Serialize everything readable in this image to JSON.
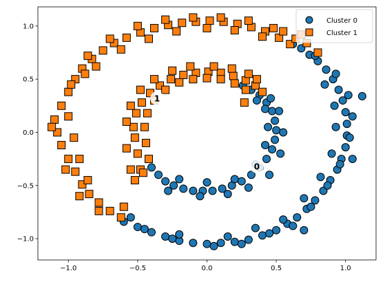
{
  "chart_data": {
    "type": "scatter",
    "title": "",
    "xlabel": "",
    "ylabel": "",
    "xlim": [
      -1.22,
      1.22
    ],
    "ylim": [
      -1.2,
      1.18
    ],
    "x_ticks": [
      -1.0,
      -0.5,
      0.0,
      0.5,
      1.0
    ],
    "x_tick_labels": [
      "−1.0",
      "−0.5",
      "0.0",
      "0.5",
      "1.0"
    ],
    "y_ticks": [
      -1.0,
      -0.5,
      0.0,
      0.5,
      1.0
    ],
    "y_tick_labels": [
      "−1.0",
      "−0.5",
      "0.0",
      "0.5",
      "1.0"
    ],
    "grid": false,
    "legend_placement": "top-right",
    "series": [
      {
        "name": "Cluster 0",
        "marker": "circle",
        "color": "#1f77b4",
        "points": [
          [
            -0.6,
            -0.84
          ],
          [
            -0.5,
            -0.89
          ],
          [
            -0.4,
            -0.94
          ],
          [
            -0.3,
            -0.98
          ],
          [
            -0.2,
            -1.02
          ],
          [
            -0.1,
            -1.04
          ],
          [
            0.0,
            -1.05
          ],
          [
            0.1,
            -1.04
          ],
          [
            0.2,
            -1.03
          ],
          [
            0.3,
            -1.01
          ],
          [
            0.4,
            -0.97
          ],
          [
            0.5,
            -0.92
          ],
          [
            0.58,
            -0.86
          ],
          [
            0.65,
            -0.8
          ],
          [
            0.72,
            -0.72
          ],
          [
            0.78,
            -0.64
          ],
          [
            0.84,
            -0.55
          ],
          [
            0.89,
            -0.45
          ],
          [
            0.94,
            -0.35
          ],
          [
            0.97,
            -0.25
          ],
          [
            1.0,
            -0.14
          ],
          [
            1.01,
            -0.03
          ],
          [
            1.01,
            0.08
          ],
          [
            1.0,
            0.19
          ],
          [
            0.98,
            0.3
          ],
          [
            0.95,
            0.4
          ],
          [
            0.91,
            0.5
          ],
          [
            0.86,
            0.59
          ],
          [
            0.8,
            0.67
          ],
          [
            0.74,
            0.73
          ],
          [
            0.68,
            0.79
          ],
          [
            0.62,
            0.83
          ],
          [
            -0.45,
            -0.91
          ],
          [
            -0.25,
            -1.0
          ],
          [
            0.05,
            -1.07
          ],
          [
            0.25,
            -1.05
          ],
          [
            0.45,
            -0.95
          ],
          [
            0.62,
            -0.88
          ],
          [
            0.75,
            -0.7
          ],
          [
            0.87,
            -0.5
          ],
          [
            0.96,
            -0.3
          ],
          [
            1.03,
            -0.05
          ],
          [
            1.05,
            0.15
          ],
          [
            1.02,
            0.35
          ],
          [
            0.93,
            0.55
          ],
          [
            0.78,
            0.72
          ],
          [
            1.12,
            0.34
          ],
          [
            1.05,
            -0.25
          ],
          [
            0.7,
            -0.92
          ],
          [
            -0.55,
            -0.8
          ],
          [
            -0.2,
            -0.96
          ],
          [
            0.15,
            -0.98
          ],
          [
            0.35,
            -0.9
          ],
          [
            0.55,
            -0.82
          ],
          [
            0.7,
            -0.62
          ],
          [
            0.82,
            -0.42
          ],
          [
            0.9,
            -0.2
          ],
          [
            0.93,
            0.05
          ],
          [
            0.92,
            0.25
          ],
          [
            0.85,
            0.45
          ],
          [
            -0.35,
            -0.4
          ],
          [
            -0.3,
            -0.46
          ],
          [
            -0.24,
            -0.5
          ],
          [
            -0.17,
            -0.53
          ],
          [
            -0.1,
            -0.55
          ],
          [
            -0.03,
            -0.55
          ],
          [
            0.04,
            -0.55
          ],
          [
            0.11,
            -0.53
          ],
          [
            0.18,
            -0.5
          ],
          [
            0.25,
            -0.46
          ],
          [
            0.32,
            -0.4
          ],
          [
            0.38,
            -0.33
          ],
          [
            0.43,
            -0.25
          ],
          [
            0.47,
            -0.16
          ],
          [
            0.49,
            -0.07
          ],
          [
            0.5,
            0.02
          ],
          [
            0.49,
            0.11
          ],
          [
            0.47,
            0.2
          ],
          [
            0.43,
            0.28
          ],
          [
            0.38,
            0.35
          ],
          [
            0.32,
            0.4
          ],
          [
            0.26,
            0.44
          ],
          [
            -0.4,
            -0.33
          ],
          [
            -0.2,
            -0.44
          ],
          [
            0.0,
            -0.47
          ],
          [
            0.2,
            -0.44
          ],
          [
            0.35,
            -0.3
          ],
          [
            0.42,
            -0.12
          ],
          [
            0.44,
            0.05
          ],
          [
            0.42,
            0.22
          ],
          [
            -0.28,
            -0.55
          ],
          [
            -0.05,
            -0.6
          ],
          [
            0.15,
            -0.58
          ],
          [
            0.3,
            -0.52
          ],
          [
            0.45,
            -0.4
          ],
          [
            0.53,
            -0.2
          ],
          [
            0.55,
            0.0
          ],
          [
            0.52,
            0.2
          ],
          [
            0.46,
            0.32
          ],
          [
            0.36,
            0.3
          ]
        ]
      },
      {
        "name": "Cluster 1",
        "marker": "square",
        "color": "#ff7f0e",
        "points": [
          [
            -1.1,
            0.12
          ],
          [
            -1.08,
            0.0
          ],
          [
            -1.05,
            -0.12
          ],
          [
            -1.0,
            -0.25
          ],
          [
            -0.95,
            -0.37
          ],
          [
            -0.9,
            -0.49
          ],
          [
            -0.85,
            -0.58
          ],
          [
            -0.78,
            -0.66
          ],
          [
            -0.7,
            -0.74
          ],
          [
            -0.62,
            -0.8
          ],
          [
            -1.05,
            0.25
          ],
          [
            -1.0,
            0.38
          ],
          [
            -0.95,
            0.5
          ],
          [
            -0.9,
            0.6
          ],
          [
            -0.83,
            0.69
          ],
          [
            -0.75,
            0.77
          ],
          [
            -0.67,
            0.84
          ],
          [
            -0.58,
            0.89
          ],
          [
            -0.48,
            0.94
          ],
          [
            -0.38,
            0.98
          ],
          [
            -0.28,
            1.01
          ],
          [
            -0.18,
            1.03
          ],
          [
            -0.08,
            1.04
          ],
          [
            0.02,
            1.05
          ],
          [
            0.12,
            1.04
          ],
          [
            0.22,
            1.02
          ],
          [
            0.32,
            0.99
          ],
          [
            0.42,
            0.95
          ],
          [
            0.52,
            0.89
          ],
          [
            0.6,
            0.83
          ],
          [
            -1.12,
            0.05
          ],
          [
            -1.02,
            -0.35
          ],
          [
            -0.92,
            -0.6
          ],
          [
            -0.78,
            -0.74
          ],
          [
            -0.98,
            0.45
          ],
          [
            -0.86,
            0.72
          ],
          [
            -0.7,
            0.88
          ],
          [
            -0.5,
            1.0
          ],
          [
            -0.3,
            1.06
          ],
          [
            -0.1,
            1.08
          ],
          [
            0.1,
            1.08
          ],
          [
            0.3,
            1.05
          ],
          [
            0.48,
            0.98
          ],
          [
            0.64,
            0.88
          ],
          [
            0.72,
            0.84
          ],
          [
            -1.0,
            0.15
          ],
          [
            -0.96,
            -0.05
          ],
          [
            -0.92,
            -0.25
          ],
          [
            -0.86,
            -0.45
          ],
          [
            -0.88,
            0.55
          ],
          [
            -0.8,
            0.62
          ],
          [
            -0.62,
            0.78
          ],
          [
            -0.42,
            0.88
          ],
          [
            -0.22,
            0.95
          ],
          [
            0.0,
            0.98
          ],
          [
            0.2,
            0.96
          ],
          [
            0.4,
            0.9
          ],
          [
            0.55,
            0.95
          ],
          [
            0.68,
            0.92
          ],
          [
            0.8,
            0.75
          ],
          [
            -0.6,
            -0.7
          ],
          [
            -0.52,
            -0.45
          ],
          [
            -0.48,
            -0.35
          ],
          [
            -0.5,
            -0.2
          ],
          [
            -0.52,
            -0.05
          ],
          [
            -0.53,
            0.05
          ],
          [
            -0.51,
            0.18
          ],
          [
            -0.47,
            0.28
          ],
          [
            -0.41,
            0.37
          ],
          [
            -0.34,
            0.44
          ],
          [
            -0.26,
            0.5
          ],
          [
            -0.17,
            0.54
          ],
          [
            -0.08,
            0.56
          ],
          [
            0.01,
            0.57
          ],
          [
            0.1,
            0.56
          ],
          [
            0.19,
            0.53
          ],
          [
            0.28,
            0.49
          ],
          [
            0.35,
            0.44
          ],
          [
            -0.42,
            -0.25
          ],
          [
            -0.44,
            -0.1
          ],
          [
            -0.45,
            0.05
          ],
          [
            -0.43,
            0.18
          ],
          [
            -0.38,
            0.3
          ],
          [
            -0.3,
            0.4
          ],
          [
            -0.2,
            0.47
          ],
          [
            -0.1,
            0.5
          ],
          [
            0.0,
            0.51
          ],
          [
            0.1,
            0.5
          ],
          [
            0.2,
            0.46
          ],
          [
            0.28,
            0.4
          ],
          [
            -0.58,
            -0.15
          ],
          [
            -0.58,
            0.1
          ],
          [
            -0.55,
            0.25
          ],
          [
            -0.48,
            0.4
          ],
          [
            -0.38,
            0.5
          ],
          [
            -0.25,
            0.58
          ],
          [
            -0.12,
            0.62
          ],
          [
            0.05,
            0.62
          ],
          [
            0.18,
            0.6
          ],
          [
            0.3,
            0.55
          ],
          [
            -0.55,
            -0.35
          ],
          [
            -0.46,
            -0.38
          ],
          [
            0.4,
            0.38
          ],
          [
            0.36,
            0.5
          ],
          [
            0.27,
            0.28
          ]
        ]
      }
    ],
    "centroids": [
      {
        "label": "0",
        "x": 0.36,
        "y": -0.32
      },
      {
        "label": "1",
        "x": -0.36,
        "y": 0.32
      }
    ]
  }
}
